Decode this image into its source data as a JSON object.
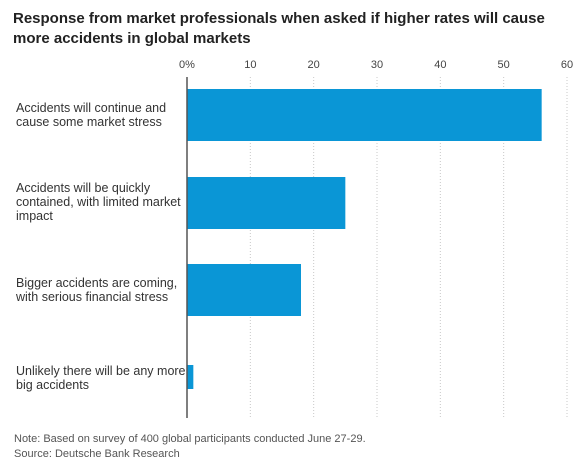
{
  "chart_data": {
    "type": "bar",
    "orientation": "horizontal",
    "title": "Response from market professionals when asked if higher rates will cause more accidents in global markets",
    "categories": [
      "Accidents will continue and cause some market stress",
      "Accidents will be quickly contained, with limited market impact",
      "Bigger accidents are coming, with serious financial stress",
      "Unlikely there will be any more big accidents"
    ],
    "values": [
      56,
      25,
      18,
      1
    ],
    "xlim": [
      0,
      60
    ],
    "ticks": [
      {
        "value": 0,
        "label": "0%"
      },
      {
        "value": 10,
        "label": "10"
      },
      {
        "value": 20,
        "label": "20"
      },
      {
        "value": 30,
        "label": "30"
      },
      {
        "value": 40,
        "label": "40"
      },
      {
        "value": 50,
        "label": "50"
      },
      {
        "value": 60,
        "label": "60"
      }
    ],
    "grid": true,
    "bar_color": "#0a96d6",
    "grid_color": "#c8c8c8",
    "axis_color": "#555555"
  },
  "footer": {
    "note": "Note: Based on survey of 400 global participants conducted June 27-29.",
    "source": "Source: Deutsche Bank Research"
  }
}
